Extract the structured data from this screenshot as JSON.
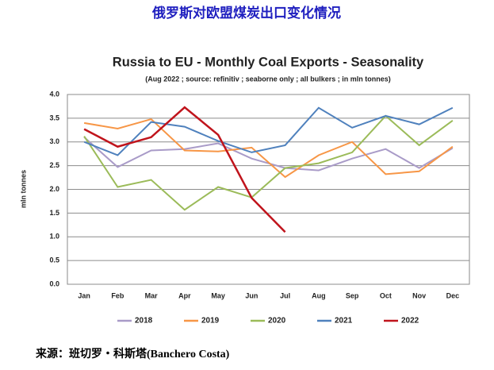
{
  "header": {
    "title": "俄罗斯对欧盟煤炭出口变化情况"
  },
  "source": "来源：班切罗・科斯塔(Banchero Costa)",
  "chart_data": {
    "type": "line",
    "title": "Russia to EU - Monthly Coal Exports - Seasonality",
    "subtitle": "(Aug 2022 ; source: refinitiv ; seaborne only ; all bulkers ; in mln tonnes)",
    "y_label": "mln tonnes",
    "categories": [
      "Jan",
      "Feb",
      "Mar",
      "Apr",
      "May",
      "Jun",
      "Jul",
      "Aug",
      "Sep",
      "Oct",
      "Nov",
      "Dec"
    ],
    "series": [
      {
        "name": "2018",
        "color": "#a99bc8",
        "values": [
          3.1,
          2.47,
          2.82,
          2.85,
          2.97,
          2.65,
          2.45,
          2.4,
          2.65,
          2.85,
          2.45,
          2.87
        ]
      },
      {
        "name": "2019",
        "color": "#f79646",
        "values": [
          3.4,
          3.28,
          3.48,
          2.82,
          2.8,
          2.88,
          2.26,
          2.72,
          3.0,
          2.32,
          2.38,
          2.9
        ]
      },
      {
        "name": "2020",
        "color": "#9bbb59",
        "values": [
          3.12,
          2.05,
          2.2,
          1.57,
          2.05,
          1.83,
          2.45,
          2.55,
          2.78,
          3.55,
          2.93,
          3.45
        ]
      },
      {
        "name": "2021",
        "color": "#4f81bd",
        "values": [
          3.0,
          2.72,
          3.42,
          3.32,
          3.02,
          2.78,
          2.93,
          3.72,
          3.3,
          3.55,
          3.37,
          3.72
        ]
      },
      {
        "name": "2022",
        "color": "#c0141c",
        "values": [
          3.27,
          2.9,
          3.1,
          3.73,
          3.15,
          1.82,
          1.1,
          null,
          null,
          null,
          null,
          null
        ]
      }
    ],
    "ylim": [
      0,
      4
    ],
    "yticks": [
      {
        "value": 0,
        "label": "0.0"
      },
      {
        "value": 0.5,
        "label": "0.5"
      },
      {
        "value": 1,
        "label": "1.0"
      },
      {
        "value": 1.5,
        "label": "1.5"
      },
      {
        "value": 2,
        "label": "2.0"
      },
      {
        "value": 2.5,
        "label": "2.5"
      },
      {
        "value": 3,
        "label": "3.0"
      },
      {
        "value": 3.5,
        "label": "3.5"
      },
      {
        "value": 4,
        "label": "4.0"
      }
    ],
    "grid": true,
    "legend": "bottom"
  }
}
